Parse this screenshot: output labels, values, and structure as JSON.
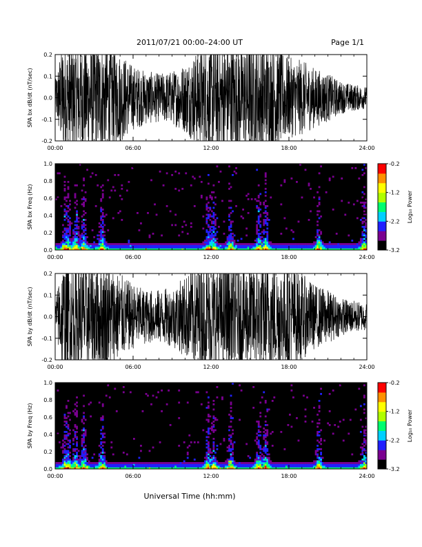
{
  "header": {
    "title": "2011/07/21  00:00–24:00 UT",
    "page": "Page 1/1"
  },
  "xlabel": "Universal Time (hh:mm)",
  "chart_data": [
    {
      "type": "line",
      "id": "bx-ts",
      "ylabel": "SPA bx dB/dt (nT/sec)",
      "xlim": [
        0,
        24
      ],
      "ylim": [
        -0.2,
        0.2
      ],
      "xticks": [
        "00:00",
        "06:00",
        "12:00",
        "18:00",
        "24:00"
      ],
      "yticks": [
        "-0.2",
        "-0.1",
        "0.0",
        "0.1",
        "0.2"
      ],
      "envelope_hours": [
        0,
        0.5,
        1,
        1.5,
        2,
        3,
        4,
        5,
        6,
        7,
        8,
        9,
        10,
        11,
        12,
        13,
        14,
        15,
        16,
        17,
        18,
        19,
        20,
        21,
        22,
        23,
        24
      ],
      "envelope_amplitude": [
        0.06,
        0.2,
        0.2,
        0.2,
        0.2,
        0.2,
        0.2,
        0.17,
        0.12,
        0.1,
        0.09,
        0.1,
        0.13,
        0.18,
        0.2,
        0.2,
        0.2,
        0.2,
        0.2,
        0.2,
        0.15,
        0.14,
        0.11,
        0.09,
        0.06,
        0.05,
        0.04
      ],
      "color": "#000000"
    },
    {
      "type": "heatmap",
      "id": "bx-spec",
      "ylabel": "SPA bx Freq (Hz)",
      "colorbar_label": "Log₁₀ Power",
      "xlim": [
        0,
        24
      ],
      "ylim": [
        0,
        1
      ],
      "xticks": [
        "00:00",
        "06:00",
        "12:00",
        "18:00",
        "24:00"
      ],
      "yticks": [
        "0.0",
        "0.2",
        "0.4",
        "0.6",
        "0.8",
        "1.0"
      ],
      "clim": [
        -3.2,
        -0.2
      ],
      "cticks": [
        "-0.2",
        "-1.2",
        "-2.2",
        "-3.2"
      ],
      "activity_bursts_hours": [
        0.8,
        1.0,
        1.6,
        2.2,
        3.6,
        11.8,
        12.2,
        13.5,
        15.7,
        16.2,
        20.3,
        23.8
      ],
      "colormap": [
        "#000000",
        "#7a0090",
        "#2020ff",
        "#00d0ff",
        "#00ff70",
        "#b0ff00",
        "#ffff00",
        "#ff9000",
        "#ff0000"
      ]
    },
    {
      "type": "line",
      "id": "by-ts",
      "ylabel": "SPA by dB/dt (nT/sec)",
      "xlim": [
        0,
        24
      ],
      "ylim": [
        -0.2,
        0.2
      ],
      "xticks": [
        "00:00",
        "06:00",
        "12:00",
        "18:00",
        "24:00"
      ],
      "yticks": [
        "-0.2",
        "-0.1",
        "0.0",
        "0.1",
        "0.2"
      ],
      "envelope_hours": [
        0,
        0.5,
        1,
        1.5,
        2,
        3,
        4,
        5,
        6,
        7,
        8,
        9,
        10,
        11,
        12,
        13,
        14,
        15,
        16,
        17,
        18,
        19,
        20,
        21,
        22,
        23,
        24
      ],
      "envelope_amplitude": [
        0.05,
        0.2,
        0.2,
        0.2,
        0.2,
        0.2,
        0.2,
        0.16,
        0.12,
        0.1,
        0.1,
        0.11,
        0.15,
        0.2,
        0.2,
        0.2,
        0.2,
        0.2,
        0.2,
        0.2,
        0.2,
        0.16,
        0.12,
        0.1,
        0.07,
        0.06,
        0.05
      ],
      "color": "#000000"
    },
    {
      "type": "heatmap",
      "id": "by-spec",
      "ylabel": "SPA by Freq (Hz)",
      "colorbar_label": "Log₁₀ Power",
      "xlim": [
        0,
        24
      ],
      "ylim": [
        0,
        1
      ],
      "xticks": [
        "00:00",
        "06:00",
        "12:00",
        "18:00",
        "24:00"
      ],
      "yticks": [
        "0.0",
        "0.2",
        "0.4",
        "0.6",
        "0.8",
        "1.0"
      ],
      "clim": [
        -3.2,
        -0.2
      ],
      "cticks": [
        "-0.2",
        "-1.2",
        "-2.2",
        "-3.2"
      ],
      "activity_bursts_hours": [
        0.8,
        1.0,
        1.6,
        2.2,
        3.6,
        11.8,
        12.2,
        13.5,
        15.7,
        16.2,
        20.3,
        23.8
      ],
      "colormap": [
        "#000000",
        "#7a0090",
        "#2020ff",
        "#00d0ff",
        "#00ff70",
        "#b0ff00",
        "#ffff00",
        "#ff9000",
        "#ff0000"
      ]
    }
  ]
}
